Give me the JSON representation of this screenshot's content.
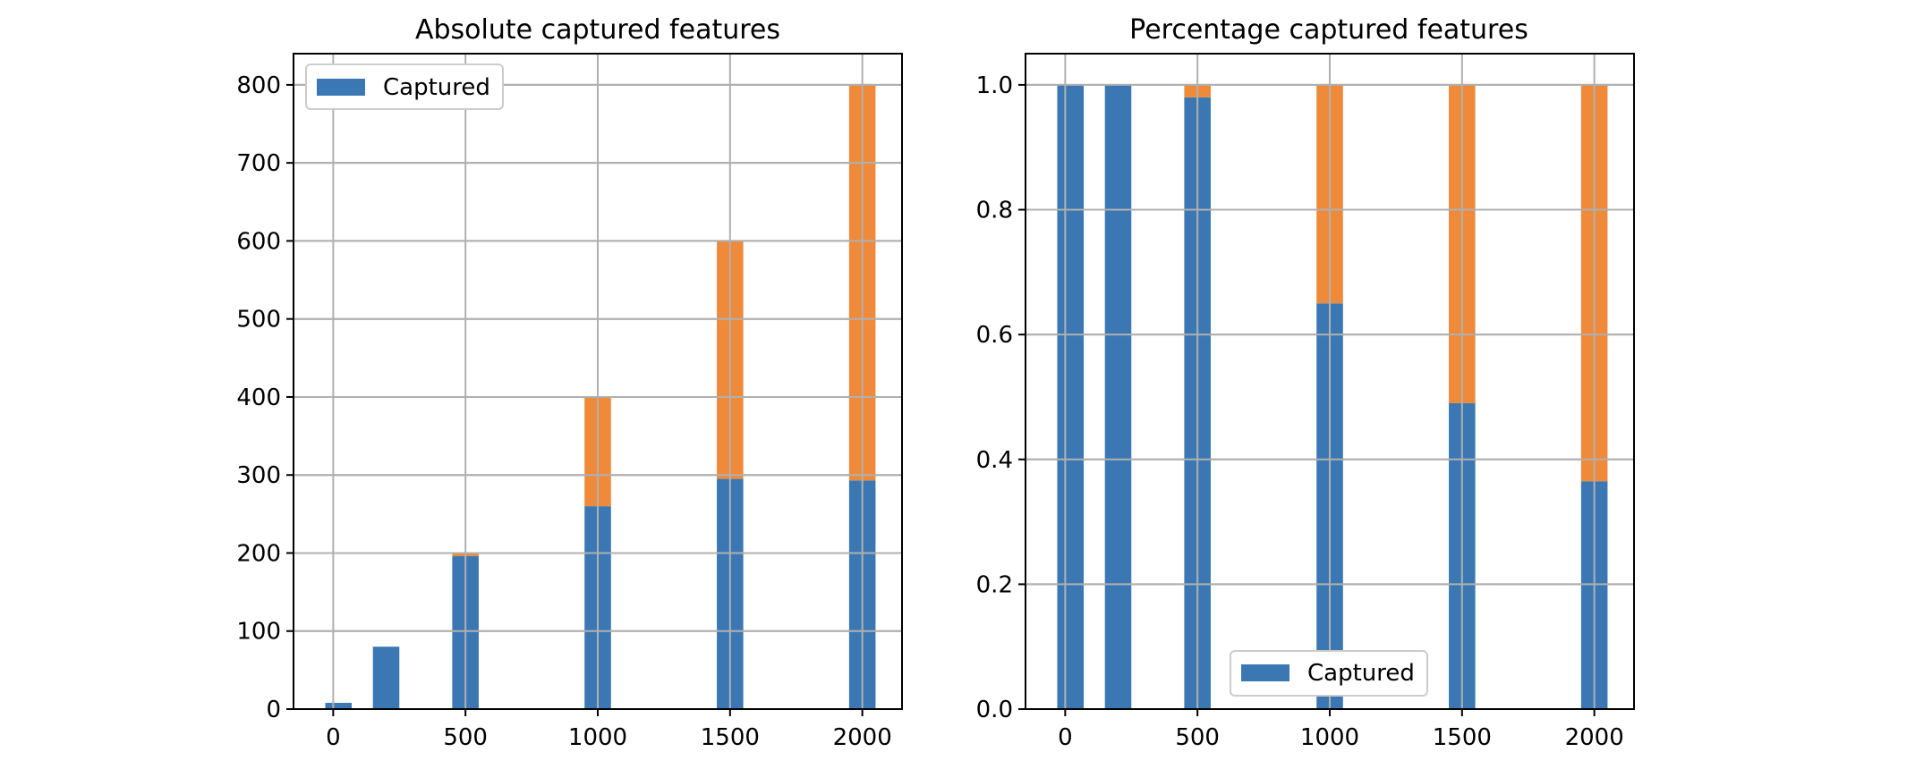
{
  "colors": {
    "captured": "#3b78b3",
    "not_captured": "#ee8a3a",
    "grid": "#b0b0b0"
  },
  "chart_data": [
    {
      "type": "bar",
      "title": "Absolute captured features",
      "xlabel": "",
      "ylabel": "",
      "x": [
        20,
        200,
        500,
        1000,
        1500,
        2000
      ],
      "series": [
        {
          "name": "Captured",
          "values": [
            8,
            80,
            196,
            260,
            295,
            293
          ]
        },
        {
          "values": [
            0,
            0,
            4,
            140,
            305,
            507
          ]
        }
      ],
      "stacked": true,
      "xlim": [
        -150,
        2150
      ],
      "ylim": [
        0,
        840
      ],
      "xticks": [
        "0",
        "500",
        "1000",
        "1500",
        "2000"
      ],
      "yticks": [
        "0",
        "100",
        "200",
        "300",
        "400",
        "500",
        "600",
        "700",
        "800"
      ],
      "grid": true,
      "legend": "upper-left"
    },
    {
      "type": "bar",
      "title": "Percentage captured features",
      "xlabel": "",
      "ylabel": "",
      "x": [
        20,
        200,
        500,
        1000,
        1500,
        2000
      ],
      "series": [
        {
          "name": "Captured",
          "values": [
            1.0,
            1.0,
            0.98,
            0.65,
            0.49,
            0.365
          ]
        },
        {
          "values": [
            0.0,
            0.0,
            0.02,
            0.35,
            0.51,
            0.635
          ]
        }
      ],
      "stacked": true,
      "xlim": [
        -150,
        2150
      ],
      "ylim": [
        0,
        1.05
      ],
      "xticks": [
        "0",
        "500",
        "1000",
        "1500",
        "2000"
      ],
      "yticks": [
        "0.0",
        "0.2",
        "0.4",
        "0.6",
        "0.8",
        "1.0"
      ],
      "grid": true,
      "legend": "lower-center"
    }
  ]
}
